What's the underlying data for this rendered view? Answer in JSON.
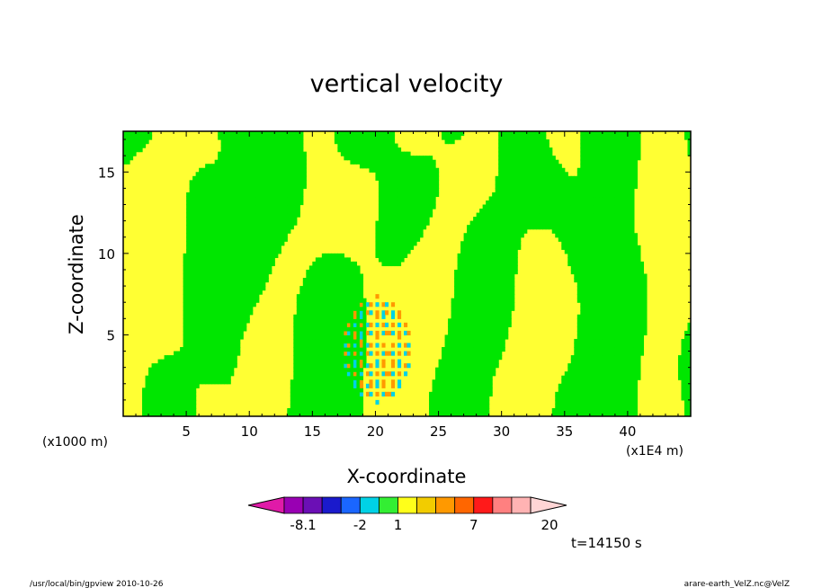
{
  "chart_data": {
    "type": "heatmap",
    "title": "vertical velocity",
    "xlabel": "X-coordinate",
    "ylabel": "Z-coordinate",
    "x_units_left": "(x1000 m)",
    "x_units_right": "(x1E4 m)",
    "xlim": [
      0,
      45
    ],
    "ylim": [
      0,
      17.5
    ],
    "x_ticks": [
      5,
      10,
      15,
      20,
      25,
      30,
      35,
      40
    ],
    "y_ticks": [
      5,
      10,
      15
    ],
    "x_tick_labels": [
      "5",
      "10",
      "15",
      "20",
      "25",
      "30",
      "35",
      "40"
    ],
    "y_tick_labels": [
      "5",
      "10",
      "15"
    ],
    "colorbar": {
      "labels": [
        {
          "text": "-8.1",
          "index": 2
        },
        {
          "text": "-2",
          "index": 5
        },
        {
          "text": "1",
          "index": 7
        },
        {
          "text": "7",
          "index": 11
        },
        {
          "text": "20",
          "index": 15
        }
      ],
      "colors": [
        "#e01aa8",
        "#9900b3",
        "#6b0fb5",
        "#1a1acc",
        "#1a66ff",
        "#00d2e6",
        "#33ee33",
        "#ffff1a",
        "#f2cc00",
        "#ff9900",
        "#ff6600",
        "#ff1a1a",
        "#ff8080",
        "#ffb3b3",
        "#ffd5d5"
      ]
    },
    "field_colors": {
      "negative_small": "#00e600",
      "positive_small": "#ffff33",
      "strong_negative": "#00d2e6",
      "strong_positive": "#ff9900",
      "contour": "#000000"
    },
    "time_label": "t=14150 s"
  },
  "footer": {
    "left": "/usr/local/bin/gpview  2010-10-26",
    "right": "arare-earth_VelZ.nc@VelZ"
  }
}
